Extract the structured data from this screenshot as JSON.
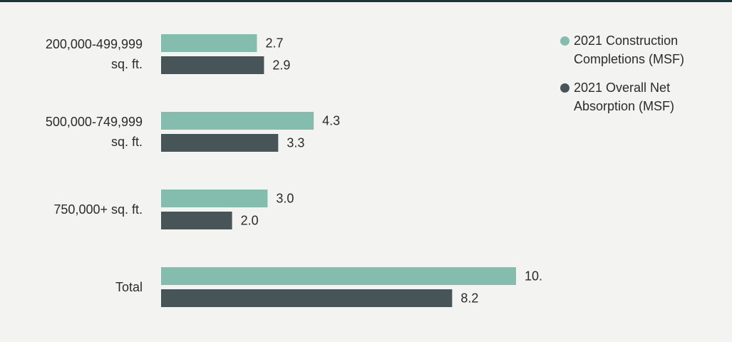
{
  "chart_data": {
    "type": "bar",
    "orientation": "horizontal",
    "categories": [
      [
        "200,000-499,999",
        "sq. ft."
      ],
      [
        "500,000-749,999",
        "sq. ft."
      ],
      [
        "750,000+ sq. ft."
      ],
      [
        "Total"
      ]
    ],
    "series": [
      {
        "name": "2021 Construction Completions (MSF)",
        "color": "#84bcad",
        "values": [
          2.7,
          4.3,
          3.0,
          10.0
        ],
        "labels": [
          "2.7",
          "4.3",
          "3.0",
          "10.0"
        ]
      },
      {
        "name": "2021 Overall Net Absorption (MSF)",
        "color": "#475559",
        "values": [
          2.9,
          3.3,
          2.0,
          8.2
        ],
        "labels": [
          "2.9",
          "3.3",
          "2.0",
          "8.2"
        ]
      }
    ],
    "xlim": [
      0,
      10.0
    ],
    "grid": false,
    "axes_visible": false,
    "legend_position": "top-right"
  }
}
